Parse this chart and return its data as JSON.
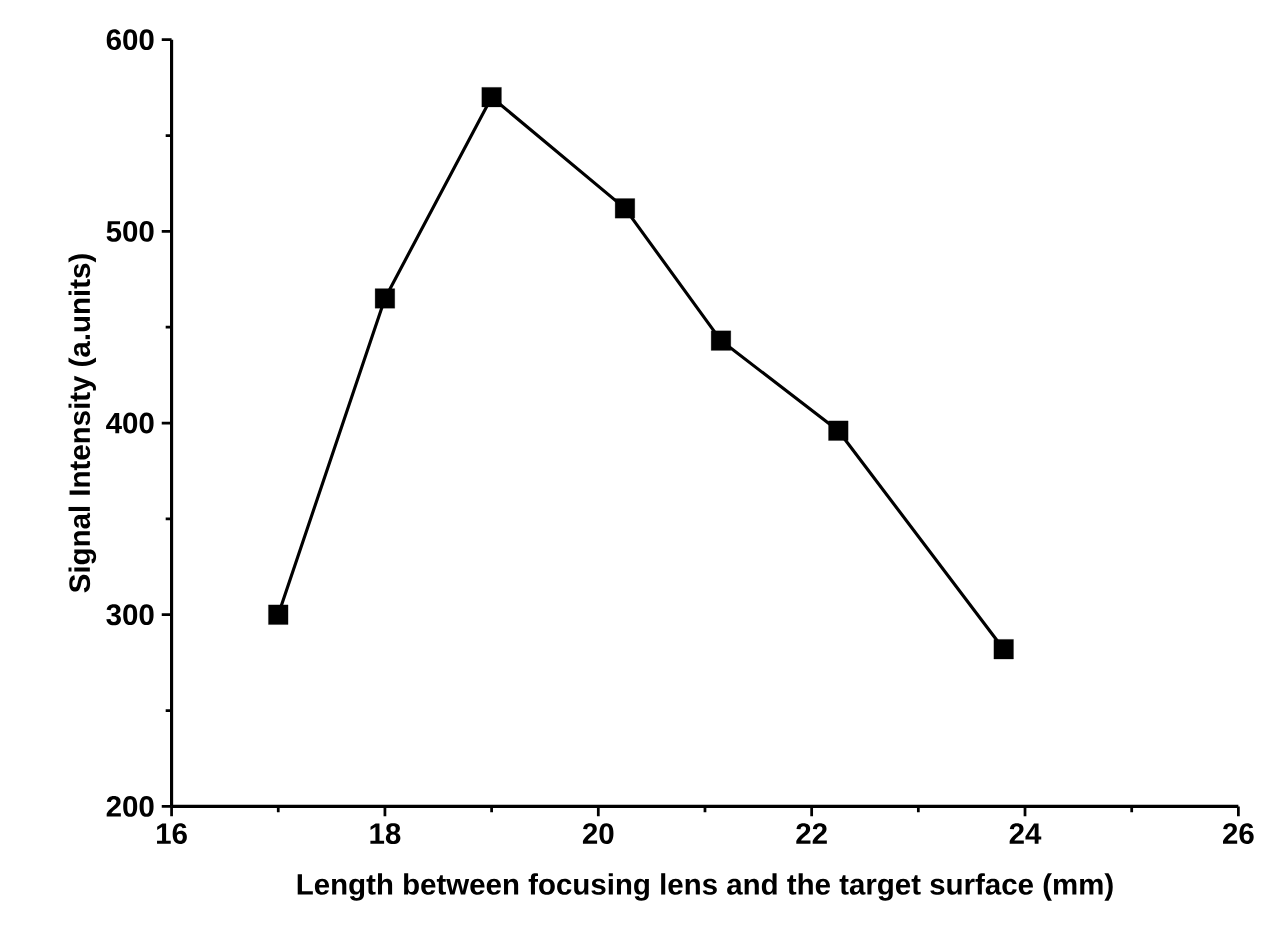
{
  "chart_data": {
    "type": "line",
    "xlabel": "Length between focusing lens and the target surface (mm)",
    "ylabel": "Signal Intensity (a.units)",
    "x": [
      17.0,
      18.0,
      19.0,
      20.25,
      21.15,
      22.25,
      23.8
    ],
    "series": [
      {
        "color": "#000000",
        "values": [
          300,
          465,
          570,
          512,
          443,
          396,
          282
        ]
      }
    ],
    "xlim": [
      16,
      26
    ],
    "ylim": [
      200,
      600
    ],
    "xticks": [
      16,
      18,
      20,
      22,
      24,
      26
    ],
    "yticks": [
      200,
      300,
      400,
      500,
      600
    ],
    "marker": "square",
    "line_style": "solid"
  }
}
